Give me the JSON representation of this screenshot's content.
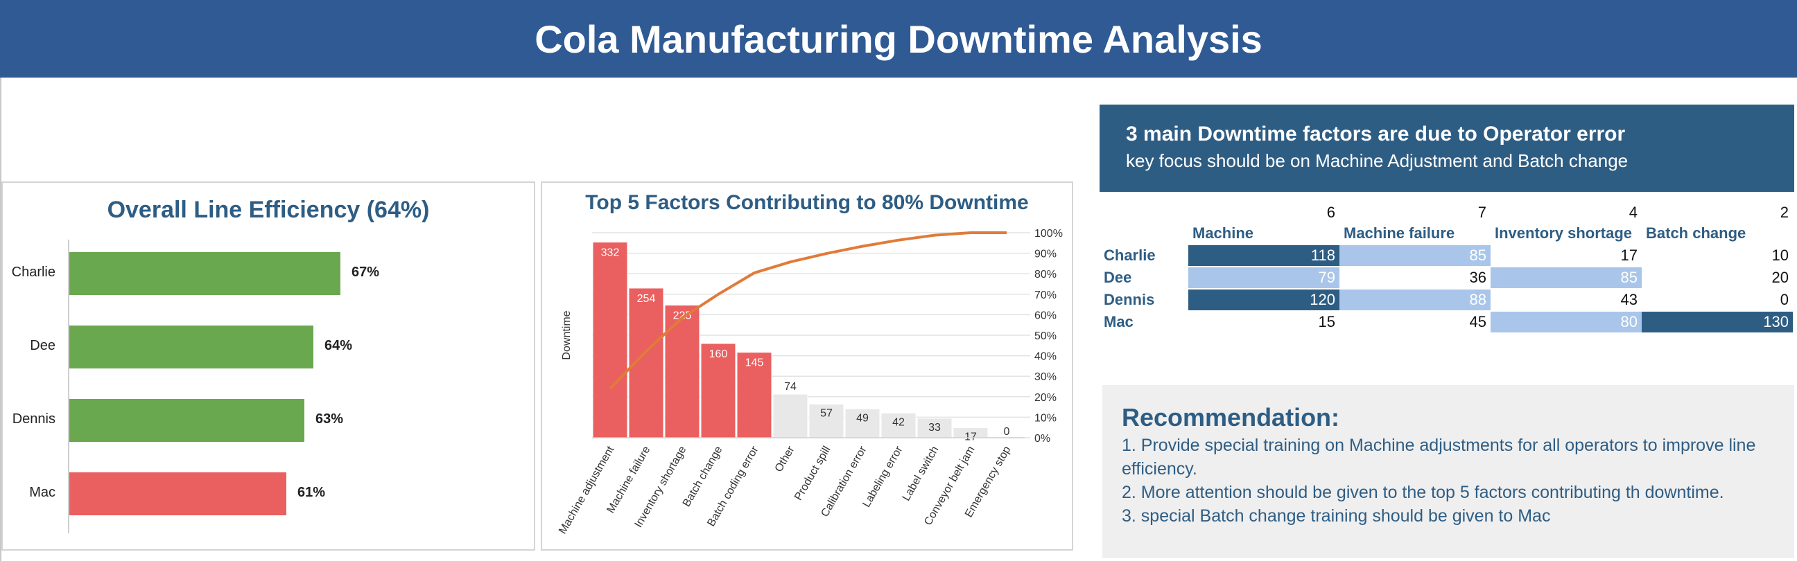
{
  "header": {
    "title": "Cola Manufacturing Downtime Analysis"
  },
  "efficiency": {
    "title": "Overall Line Efficiency (64%)",
    "bar_color_good": "#6aa84f",
    "bar_color_low": "#ea5f5f",
    "rows": [
      {
        "name": "Charlie",
        "value": 67,
        "label": "67%"
      },
      {
        "name": "Dee",
        "value": 64,
        "label": "64%"
      },
      {
        "name": "Dennis",
        "value": 63,
        "label": "63%"
      },
      {
        "name": "Mac",
        "value": 61,
        "label": "61%"
      }
    ]
  },
  "chart_data": {
    "type": "bar",
    "title": "Top 5 Factors Contributing to 80% Downtime",
    "ylabel": "Downtime",
    "categories": [
      "Machine adjustment",
      "Machine failure",
      "Inventory shortage",
      "Batch change",
      "Batch coding error",
      "Other",
      "Product spill",
      "Calibration error",
      "Labeling error",
      "Label switch",
      "Conveyor belt jam",
      "Emergency stop"
    ],
    "values": [
      332,
      254,
      225,
      160,
      145,
      74,
      57,
      49,
      42,
      33,
      17,
      0
    ],
    "top_count": 5,
    "top_color": "#ea5f5f",
    "rest_color": "#e8e8e8",
    "line_color": "#e07b39",
    "secondary_axis_ticks": [
      "0%",
      "10%",
      "20%",
      "30%",
      "40%",
      "50%",
      "60%",
      "70%",
      "80%",
      "90%",
      "100%"
    ],
    "grid": true
  },
  "insight": {
    "headline": "3 main Downtime factors are due to Operator error",
    "subline": "key focus should be on Machine Adjustment and Batch change"
  },
  "table": {
    "counts": [
      "6",
      "7",
      "4",
      "2"
    ],
    "columns": [
      "Machine adjustment",
      "Machine failure",
      "Inventory shortage",
      "Batch change"
    ],
    "rows": [
      {
        "name": "Charlie",
        "values": [
          "118",
          "85",
          "17",
          "10"
        ]
      },
      {
        "name": "Dee",
        "values": [
          "79",
          "36",
          "85",
          "20"
        ]
      },
      {
        "name": "Dennis",
        "values": [
          "120",
          "88",
          "43",
          "0"
        ]
      },
      {
        "name": "Mac",
        "values": [
          "15",
          "45",
          "80",
          "130"
        ]
      }
    ],
    "dark_color": "#2e5d84",
    "light_color": "#a9c6ea"
  },
  "recommendation": {
    "title": "Recommendation:",
    "lines": [
      "1. Provide special training on Machine adjustments for all operators to improve line efficiency.",
      "2. More attention should be given to the top 5 factors contributing th downtime.",
      "3. special Batch change training should be given to Mac"
    ]
  }
}
